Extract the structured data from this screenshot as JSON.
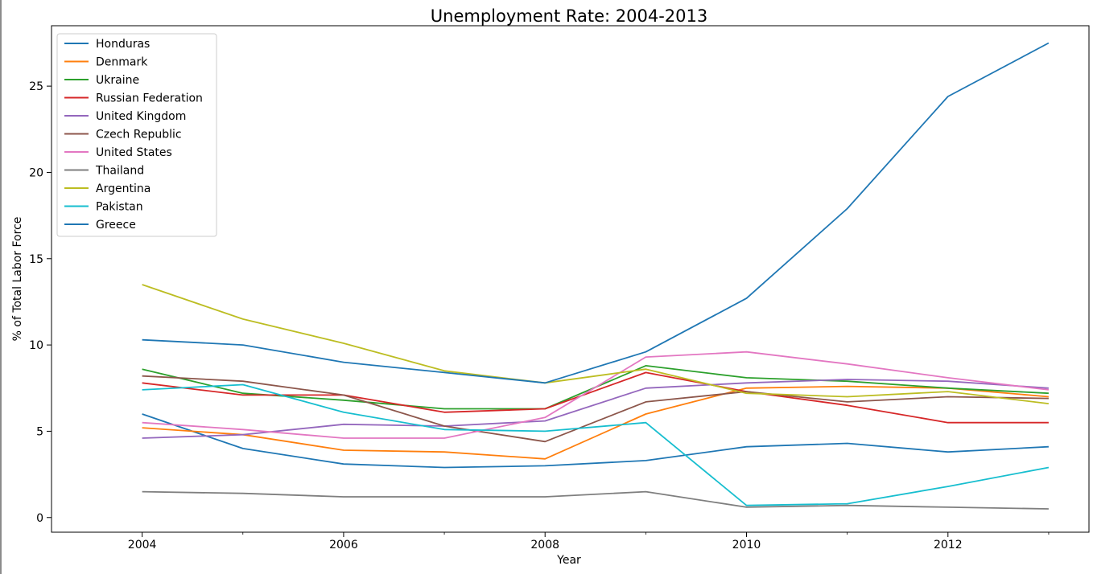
{
  "chart_data": {
    "type": "line",
    "title": "Unemployment Rate: 2004-2013",
    "xlabel": "Year",
    "ylabel": "% of Total Labor Force",
    "xlim": [
      2003.1,
      2013.4
    ],
    "ylim": [
      -0.85,
      28.5
    ],
    "xticks": [
      2004,
      2006,
      2008,
      2010,
      2012
    ],
    "xtick_labels": [
      "2004",
      "2006",
      "2008",
      "2010",
      "2012"
    ],
    "yticks": [
      0,
      5,
      10,
      15,
      20,
      25
    ],
    "ytick_labels": [
      "0",
      "5",
      "10",
      "15",
      "20",
      "25"
    ],
    "grid": false,
    "legend_position": "top-left",
    "x": [
      2004,
      2005,
      2006,
      2007,
      2008,
      2009,
      2010,
      2011,
      2012,
      2013
    ],
    "series": [
      {
        "name": "Honduras",
        "color": "#1f77b4",
        "values": [
          6.0,
          4.0,
          3.1,
          2.9,
          3.0,
          3.3,
          4.1,
          4.3,
          3.8,
          4.1
        ]
      },
      {
        "name": "Denmark",
        "color": "#ff7f0e",
        "values": [
          5.2,
          4.8,
          3.9,
          3.8,
          3.4,
          6.0,
          7.5,
          7.6,
          7.5,
          7.0
        ]
      },
      {
        "name": "Ukraine",
        "color": "#2ca02c",
        "values": [
          8.6,
          7.2,
          6.8,
          6.3,
          6.3,
          8.8,
          8.1,
          7.9,
          7.5,
          7.2
        ]
      },
      {
        "name": "Russian Federation",
        "color": "#d62728",
        "values": [
          7.8,
          7.1,
          7.1,
          6.1,
          6.3,
          8.4,
          7.3,
          6.5,
          5.5,
          5.5
        ]
      },
      {
        "name": "United Kingdom",
        "color": "#9467bd",
        "values": [
          4.6,
          4.8,
          5.4,
          5.3,
          5.6,
          7.5,
          7.8,
          8.0,
          7.9,
          7.5
        ]
      },
      {
        "name": "Czech Republic",
        "color": "#8c564b",
        "values": [
          8.2,
          7.9,
          7.1,
          5.3,
          4.4,
          6.7,
          7.3,
          6.7,
          7.0,
          6.9
        ]
      },
      {
        "name": "United States",
        "color": "#e377c2",
        "values": [
          5.5,
          5.1,
          4.6,
          4.6,
          5.8,
          9.3,
          9.6,
          8.9,
          8.1,
          7.4
        ]
      },
      {
        "name": "Thailand",
        "color": "#7f7f7f",
        "values": [
          1.5,
          1.4,
          1.2,
          1.2,
          1.2,
          1.5,
          0.6,
          0.7,
          0.6,
          0.5
        ]
      },
      {
        "name": "Argentina",
        "color": "#bcbd22",
        "values": [
          13.5,
          11.5,
          10.1,
          8.5,
          7.8,
          8.6,
          7.2,
          7.0,
          7.3,
          6.6
        ]
      },
      {
        "name": "Pakistan",
        "color": "#17becf",
        "values": [
          7.4,
          7.7,
          6.1,
          5.1,
          5.0,
          5.5,
          0.7,
          0.8,
          1.8,
          2.9
        ]
      },
      {
        "name": "Greece",
        "color": "#1f77b4",
        "values": [
          10.3,
          10.0,
          9.0,
          8.4,
          7.8,
          9.6,
          12.7,
          17.9,
          24.4,
          27.5
        ]
      }
    ]
  }
}
